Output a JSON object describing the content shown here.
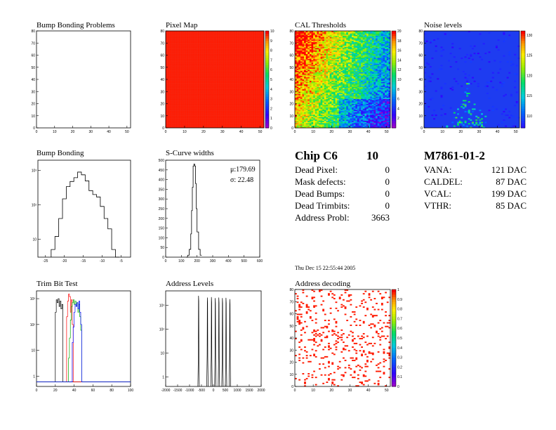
{
  "chart_data": [
    {
      "id": "bump-bonding-problems",
      "type": "heatmap",
      "title": "Bump Bonding Problems",
      "x_ticks": [
        "0",
        "10",
        "20",
        "30",
        "40",
        "50"
      ],
      "y_ticks": [
        "0",
        "10",
        "20",
        "30",
        "40",
        "50",
        "60",
        "70",
        "80"
      ],
      "xlim": [
        0,
        52
      ],
      "ylim": [
        0,
        80
      ],
      "cells": "empty"
    },
    {
      "id": "pixel-map",
      "type": "heatmap",
      "title": "Pixel Map",
      "x_ticks": [
        "0",
        "10",
        "20",
        "30",
        "40",
        "50"
      ],
      "y_ticks": [
        "0",
        "10",
        "20",
        "30",
        "40",
        "50",
        "60",
        "70",
        "80"
      ],
      "xlim": [
        0,
        52
      ],
      "ylim": [
        0,
        80
      ],
      "uniform_value": 10,
      "z_ticks": [
        "0",
        "1",
        "2",
        "3",
        "4",
        "5",
        "6",
        "7",
        "8",
        "9",
        "10"
      ],
      "zlim": [
        0,
        10
      ]
    },
    {
      "id": "cal-thresholds",
      "type": "heatmap",
      "title": "CAL Thresholds",
      "x_ticks": [
        "0",
        "10",
        "20",
        "30",
        "40",
        "50"
      ],
      "y_ticks": [
        "0",
        "10",
        "20",
        "30",
        "40",
        "50",
        "60",
        "70",
        "80"
      ],
      "xlim": [
        0,
        52
      ],
      "ylim": [
        0,
        80
      ],
      "z_ticks": [
        "2",
        "4",
        "6",
        "8",
        "10",
        "12",
        "14",
        "16",
        "18",
        "20"
      ],
      "zlim": [
        0,
        20
      ]
    },
    {
      "id": "noise-levels",
      "type": "heatmap",
      "title": "Noise levels",
      "x_ticks": [
        "0",
        "10",
        "20",
        "30",
        "40",
        "50"
      ],
      "y_ticks": [
        "0",
        "10",
        "20",
        "30",
        "40",
        "50",
        "60",
        "70",
        "80"
      ],
      "xlim": [
        0,
        52
      ],
      "ylim": [
        0,
        80
      ],
      "z_ticks": [
        "110",
        "115",
        "120",
        "125",
        "130"
      ],
      "zlim": [
        107,
        131
      ]
    },
    {
      "id": "bump-bonding",
      "type": "line",
      "title": "Bump Bonding",
      "x_ticks": [
        "-25",
        "-20",
        "-15",
        "-10",
        "-5"
      ],
      "y_ticks": [
        "10",
        "10²",
        "10³"
      ],
      "xlim": [
        -27,
        -2.5
      ],
      "log_y": true,
      "ylim": [
        3,
        2000
      ],
      "x": [
        -23,
        -22,
        -21,
        -20,
        -19,
        -18,
        -17,
        -16,
        -15,
        -14,
        -13,
        -12,
        -11,
        -10,
        -9,
        -8,
        -7,
        -6
      ],
      "values": [
        5,
        12,
        40,
        150,
        340,
        480,
        620,
        900,
        750,
        500,
        260,
        200,
        170,
        90,
        40,
        20,
        5,
        2
      ]
    },
    {
      "id": "s-curve-widths",
      "type": "line",
      "title": "S-Curve widths",
      "x_ticks": [
        "0",
        "100",
        "200",
        "300",
        "400",
        "500",
        "600"
      ],
      "y_ticks": [
        "0",
        "50",
        "100",
        "150",
        "200",
        "250",
        "300",
        "350",
        "400",
        "450",
        "500"
      ],
      "xlim": [
        0,
        600
      ],
      "ylim": [
        0,
        500
      ],
      "mean_label": "μ:179.69",
      "sigma_label": "σ: 22.48",
      "x": [
        130,
        140,
        150,
        160,
        165,
        170,
        175,
        180,
        185,
        190,
        195,
        200,
        210,
        220,
        230
      ],
      "values": [
        0,
        10,
        40,
        120,
        240,
        360,
        470,
        480,
        470,
        380,
        250,
        130,
        40,
        10,
        0
      ]
    },
    {
      "id": "trim-bit-test",
      "type": "line",
      "title": "Trim Bit Test",
      "x_ticks": [
        "0",
        "20",
        "40",
        "60",
        "80",
        "100"
      ],
      "y_ticks": [
        "1",
        "10",
        "10²",
        "10³"
      ],
      "xlim": [
        0,
        100
      ],
      "log_y": true,
      "ylim": [
        0.4,
        2000
      ],
      "series_colors": [
        "#000000",
        "#ff0000",
        "#00aa00",
        "#0000ff"
      ]
    },
    {
      "id": "address-levels",
      "type": "line",
      "title": "Address Levels",
      "x_ticks": [
        "-2000",
        "-1500",
        "-1000",
        "-500",
        "0",
        "500",
        "1000",
        "1500",
        "2000"
      ],
      "y_ticks": [
        "1",
        "10",
        "10²",
        "10³"
      ],
      "xlim": [
        -2000,
        2000
      ],
      "log_y": true,
      "ylim": [
        0.4,
        4000
      ],
      "peaks_x": [
        -620,
        -250,
        -80,
        80,
        230,
        380,
        530,
        690
      ],
      "peaks_y": [
        2500,
        2100,
        2200,
        2000,
        2100,
        2000,
        2050,
        1800
      ]
    },
    {
      "id": "address-decoding",
      "type": "heatmap",
      "title": "Address decoding",
      "x_ticks": [
        "0",
        "10",
        "20",
        "30",
        "40",
        "50"
      ],
      "y_ticks": [
        "0",
        "10",
        "20",
        "30",
        "40",
        "50",
        "60",
        "70",
        "80"
      ],
      "xlim": [
        0,
        52
      ],
      "ylim": [
        0,
        80
      ],
      "z_ticks": [
        "0",
        "0.1",
        "0.2",
        "0.3",
        "0.4",
        "0.5",
        "0.6",
        "0.7",
        "0.8",
        "0.9",
        "1"
      ],
      "zlim": [
        0,
        1
      ]
    }
  ],
  "chip_info": {
    "title": "Chip C6",
    "number": "10",
    "rows": [
      {
        "label": "Dead Pixel:",
        "value": "0"
      },
      {
        "label": "Mask defects:",
        "value": "0"
      },
      {
        "label": "Dead Bumps:",
        "value": "0"
      },
      {
        "label": "Dead Trimbits:",
        "value": "0"
      },
      {
        "label": "Address Probl:",
        "value": "3663"
      }
    ]
  },
  "module_info": {
    "title": "M7861-01-2",
    "rows": [
      {
        "label": "VANA:",
        "value": "121 DAC"
      },
      {
        "label": "CALDEL:",
        "value": "87 DAC"
      },
      {
        "label": "VCAL:",
        "value": "199 DAC"
      },
      {
        "label": "VTHR:",
        "value": "85 DAC"
      }
    ]
  },
  "timestamp": "Thu Dec 15 22:55:44 2005"
}
